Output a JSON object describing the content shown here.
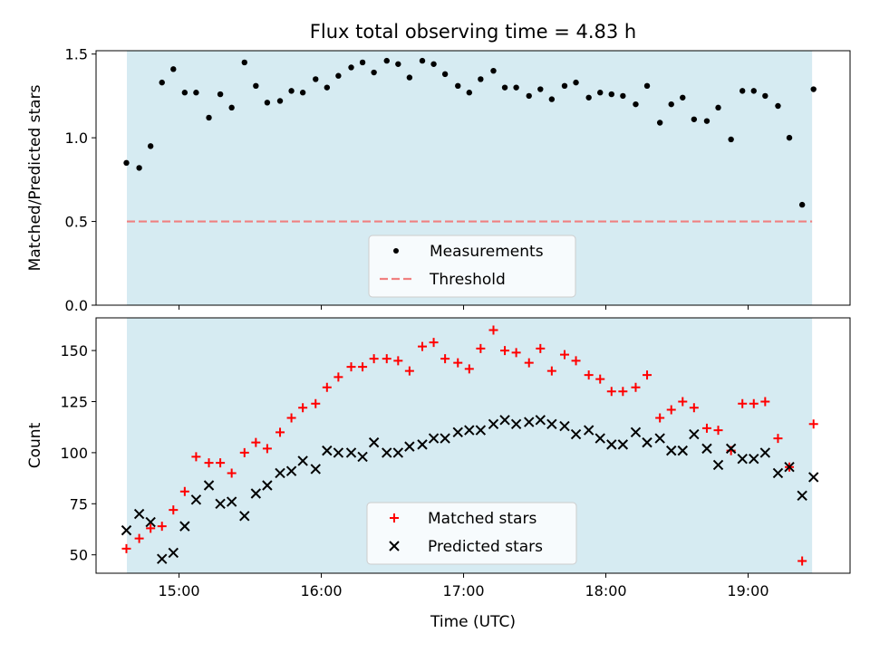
{
  "title": "Flux total observing time = 4.83 h",
  "colors": {
    "observing_band": "#add8e6",
    "measurement": "#000000",
    "threshold": "#f08080",
    "matched": "#ff0000",
    "predicted": "#000000"
  },
  "chart_data": [
    {
      "type": "scatter",
      "ylabel": "Matched/Predicted stars",
      "ylim": [
        0,
        1.52
      ],
      "xlim": [
        14.4167,
        19.7167
      ],
      "yticks": [
        0,
        0.5,
        1.0,
        1.5
      ],
      "ytick_labels": [
        "0.0",
        "0.5",
        "1.0",
        "1.5"
      ],
      "observing_window": [
        14.6333,
        19.45
      ],
      "threshold": 0.5,
      "legend_placement": "lower-center",
      "legend": [
        "Measurements",
        "Threshold"
      ],
      "series": [
        {
          "name": "Measurements",
          "x": [
            14.63,
            14.72,
            14.8,
            14.88,
            14.96,
            15.04,
            15.12,
            15.21,
            15.29,
            15.37,
            15.46,
            15.54,
            15.62,
            15.71,
            15.79,
            15.87,
            15.96,
            16.04,
            16.12,
            16.21,
            16.29,
            16.37,
            16.46,
            16.54,
            16.62,
            16.71,
            16.79,
            16.87,
            16.96,
            17.04,
            17.12,
            17.21,
            17.29,
            17.37,
            17.46,
            17.54,
            17.62,
            17.71,
            17.79,
            17.88,
            17.96,
            18.04,
            18.12,
            18.21,
            18.29,
            18.38,
            18.46,
            18.54,
            18.62,
            18.71,
            18.79,
            18.88,
            18.96,
            19.04,
            19.12,
            19.21,
            19.29,
            19.38,
            19.46
          ],
          "y": [
            0.85,
            0.82,
            0.95,
            1.33,
            1.41,
            1.27,
            1.27,
            1.12,
            1.26,
            1.18,
            1.45,
            1.31,
            1.21,
            1.22,
            1.28,
            1.27,
            1.35,
            1.3,
            1.37,
            1.42,
            1.45,
            1.39,
            1.46,
            1.44,
            1.36,
            1.46,
            1.44,
            1.38,
            1.31,
            1.27,
            1.35,
            1.4,
            1.3,
            1.3,
            1.25,
            1.29,
            1.23,
            1.31,
            1.33,
            1.24,
            1.27,
            1.26,
            1.25,
            1.2,
            1.31,
            1.09,
            1.2,
            1.24,
            1.11,
            1.1,
            1.18,
            0.99,
            1.28,
            1.28,
            1.25,
            1.19,
            1.0,
            0.6,
            1.29
          ]
        }
      ]
    },
    {
      "type": "scatter",
      "ylabel": "Count",
      "xlabel": "Time (UTC)",
      "ylim": [
        41,
        166
      ],
      "xlim": [
        14.4167,
        19.7167
      ],
      "yticks": [
        50,
        75,
        100,
        125,
        150
      ],
      "ytick_labels": [
        "50",
        "75",
        "100",
        "125",
        "150"
      ],
      "xticks": [
        15,
        16,
        17,
        18,
        19
      ],
      "xtick_labels": [
        "15:00",
        "16:00",
        "17:00",
        "18:00",
        "19:00"
      ],
      "observing_window": [
        14.6333,
        19.45
      ],
      "legend_placement": "lower-center",
      "legend": [
        "Matched stars",
        "Predicted stars"
      ],
      "series": [
        {
          "name": "Matched stars",
          "x": [
            14.63,
            14.72,
            14.8,
            14.88,
            14.96,
            15.04,
            15.12,
            15.21,
            15.29,
            15.37,
            15.46,
            15.54,
            15.62,
            15.71,
            15.79,
            15.87,
            15.96,
            16.04,
            16.12,
            16.21,
            16.29,
            16.37,
            16.46,
            16.54,
            16.62,
            16.71,
            16.79,
            16.87,
            16.96,
            17.04,
            17.12,
            17.21,
            17.29,
            17.37,
            17.46,
            17.54,
            17.62,
            17.71,
            17.79,
            17.88,
            17.96,
            18.04,
            18.12,
            18.21,
            18.29,
            18.38,
            18.46,
            18.54,
            18.62,
            18.71,
            18.79,
            18.88,
            18.96,
            19.04,
            19.12,
            19.21,
            19.29,
            19.38,
            19.46
          ],
          "y": [
            53,
            58,
            63,
            64,
            72,
            81,
            98,
            95,
            95,
            90,
            100,
            105,
            102,
            110,
            117,
            122,
            124,
            132,
            137,
            142,
            142,
            146,
            146,
            145,
            140,
            152,
            154,
            146,
            144,
            141,
            151,
            160,
            150,
            149,
            144,
            151,
            140,
            148,
            145,
            138,
            136,
            130,
            130,
            132,
            138,
            117,
            121,
            125,
            122,
            112,
            111,
            101,
            124,
            124,
            125,
            107,
            93,
            47,
            114
          ]
        },
        {
          "name": "Predicted stars",
          "x": [
            14.63,
            14.72,
            14.8,
            14.88,
            14.96,
            15.04,
            15.12,
            15.21,
            15.29,
            15.37,
            15.46,
            15.54,
            15.62,
            15.71,
            15.79,
            15.87,
            15.96,
            16.04,
            16.12,
            16.21,
            16.29,
            16.37,
            16.46,
            16.54,
            16.62,
            16.71,
            16.79,
            16.87,
            16.96,
            17.04,
            17.12,
            17.21,
            17.29,
            17.37,
            17.46,
            17.54,
            17.62,
            17.71,
            17.79,
            17.88,
            17.96,
            18.04,
            18.12,
            18.21,
            18.29,
            18.38,
            18.46,
            18.54,
            18.62,
            18.71,
            18.79,
            18.88,
            18.96,
            19.04,
            19.12,
            19.21,
            19.29,
            19.38,
            19.46
          ],
          "y": [
            62,
            70,
            66,
            48,
            51,
            64,
            77,
            84,
            75,
            76,
            69,
            80,
            84,
            90,
            91,
            96,
            92,
            101,
            100,
            100,
            98,
            105,
            100,
            100,
            103,
            104,
            107,
            107,
            110,
            111,
            111,
            114,
            116,
            114,
            115,
            116,
            114,
            113,
            109,
            111,
            107,
            104,
            104,
            110,
            105,
            107,
            101,
            101,
            109,
            102,
            94,
            102,
            97,
            97,
            100,
            90,
            93,
            79,
            88
          ]
        }
      ]
    }
  ]
}
